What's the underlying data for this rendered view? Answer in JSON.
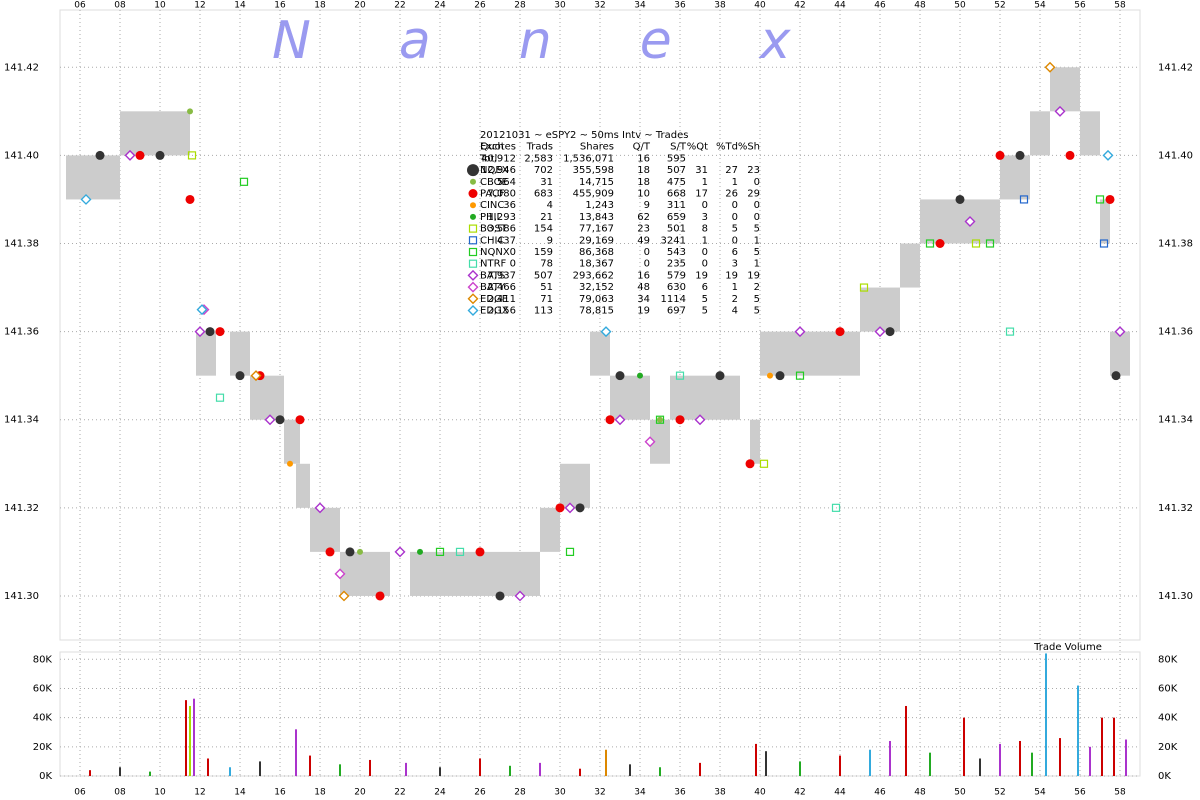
{
  "chart_data": [
    {
      "type": "scatter",
      "title": "Nanex",
      "subtitle": "20121031 ~ eSPY2 ~ 50ms Intv ~ Trades",
      "xlim": [
        5,
        59
      ],
      "xticks": [
        {
          "value": 6,
          "label": "06"
        },
        {
          "value": 8,
          "label": "08"
        },
        10,
        12,
        14,
        16,
        18,
        20,
        22,
        24,
        26,
        28,
        30,
        32,
        34,
        36,
        38,
        40,
        42,
        44,
        46,
        48,
        50,
        52,
        54,
        56,
        58
      ],
      "ylim": [
        141.29,
        141.433
      ],
      "yticks": [
        {
          "value": 141.3,
          "label": "141.30"
        },
        141.32,
        141.34,
        141.36,
        141.38,
        {
          "value": 141.4,
          "label": "141.40"
        },
        141.42
      ],
      "grid": true,
      "columns": [
        "Exch",
        "Quotes",
        "Trads",
        "Shares",
        "Q/T",
        "S/T",
        "%Qt",
        "%Td",
        "%Sh"
      ],
      "total": [
        "Totl",
        "40,912",
        "2,583",
        "1,536,071",
        "16",
        "595"
      ],
      "ranges": {
        "color": "#cccccc",
        "x": [
          5.3,
          8,
          11.8,
          13.5,
          14.5,
          16.2,
          16.8,
          17.5,
          19,
          22.5,
          29,
          30,
          31.5,
          32.5,
          34.5,
          35.5,
          39.5,
          40,
          43,
          45,
          47,
          48,
          49,
          52,
          53.5,
          54.5,
          56,
          57,
          57.5
        ],
        "x_end": [
          8,
          11.5,
          12.8,
          14.5,
          16.2,
          17,
          17.5,
          19,
          21.5,
          29,
          30,
          31.5,
          32.5,
          34.5,
          35.5,
          39,
          40,
          43,
          45,
          47,
          48,
          49,
          52,
          53.5,
          54.5,
          56,
          57,
          57.5,
          58.5
        ],
        "low": [
          141.39,
          141.4,
          141.35,
          141.35,
          141.34,
          141.33,
          141.32,
          141.31,
          141.3,
          141.3,
          141.31,
          141.32,
          141.35,
          141.34,
          141.33,
          141.34,
          141.33,
          141.35,
          141.35,
          141.36,
          141.37,
          141.38,
          141.38,
          141.39,
          141.4,
          141.41,
          141.4,
          141.38,
          141.35
        ],
        "high": [
          141.4,
          141.41,
          141.36,
          141.36,
          141.35,
          141.34,
          141.33,
          141.32,
          141.31,
          141.31,
          141.32,
          141.33,
          141.36,
          141.35,
          141.34,
          141.35,
          141.34,
          141.36,
          141.36,
          141.37,
          141.38,
          141.39,
          141.39,
          141.4,
          141.41,
          141.42,
          141.41,
          141.39,
          141.36
        ]
      },
      "series": [
        {
          "name": "NQEX",
          "color": "#333333",
          "marker": "circle",
          "cells": [
            "12,946",
            "702",
            "355,598",
            "18",
            "507",
            "31",
            "27",
            "23"
          ],
          "x": [
            7,
            10,
            12.5,
            14,
            16,
            19.5,
            27,
            31,
            33,
            38,
            41,
            46.5,
            50,
            53,
            57.8
          ],
          "values": [
            141.4,
            141.4,
            141.36,
            141.35,
            141.34,
            141.31,
            141.3,
            141.32,
            141.35,
            141.35,
            141.35,
            141.36,
            141.39,
            141.4,
            141.35
          ]
        },
        {
          "name": "CBOE",
          "color": "#88bb44",
          "marker": "dot",
          "cells": [
            "564",
            "31",
            "14,715",
            "18",
            "475",
            "1",
            "1",
            "0"
          ],
          "x": [
            11.5,
            20,
            35
          ],
          "values": [
            141.41,
            141.31,
            141.34
          ]
        },
        {
          "name": "PACF",
          "color": "#ee0000",
          "marker": "circle",
          "cells": [
            "7,080",
            "683",
            "455,909",
            "10",
            "668",
            "17",
            "26",
            "29"
          ],
          "x": [
            9,
            11.5,
            13,
            15,
            17,
            18.5,
            21,
            26,
            30,
            32.5,
            36,
            39.5,
            44,
            49,
            52,
            55.5,
            57.5
          ],
          "values": [
            141.4,
            141.39,
            141.36,
            141.35,
            141.34,
            141.31,
            141.3,
            141.31,
            141.32,
            141.34,
            141.34,
            141.33,
            141.36,
            141.38,
            141.4,
            141.4,
            141.39
          ]
        },
        {
          "name": "CINC",
          "color": "#ff9900",
          "marker": "dot",
          "cells": [
            "36",
            "4",
            "1,243",
            "9",
            "311",
            "0",
            "0",
            "0"
          ],
          "x": [
            16.5,
            40.5
          ],
          "values": [
            141.33,
            141.35
          ]
        },
        {
          "name": "PHIL",
          "color": "#22aa22",
          "marker": "dot",
          "cells": [
            "1,293",
            "21",
            "13,843",
            "62",
            "659",
            "3",
            "0",
            "0"
          ],
          "x": [
            23,
            34
          ],
          "values": [
            141.31,
            141.35
          ]
        },
        {
          "name": "BOST",
          "color": "#aadd00",
          "marker": "square",
          "cells": [
            "3,586",
            "154",
            "77,167",
            "23",
            "501",
            "8",
            "5",
            "5"
          ],
          "x": [
            11.6,
            40.2,
            45.2,
            50.8
          ],
          "values": [
            141.4,
            141.33,
            141.37,
            141.38
          ]
        },
        {
          "name": "CHIC",
          "color": "#2266cc",
          "marker": "square",
          "cells": [
            "437",
            "9",
            "29,169",
            "49",
            "3241",
            "1",
            "0",
            "1"
          ],
          "x": [
            53.2,
            57.2
          ],
          "values": [
            141.39,
            141.38
          ]
        },
        {
          "name": "NQNX",
          "color": "#22cc22",
          "marker": "square",
          "cells": [
            "0",
            "159",
            "86,368",
            "0",
            "543",
            "0",
            "6",
            "5"
          ],
          "x": [
            14.2,
            24,
            30.5,
            35,
            42,
            48.5,
            51.5,
            57
          ],
          "values": [
            141.394,
            141.31,
            141.31,
            141.34,
            141.35,
            141.38,
            141.38,
            141.39
          ]
        },
        {
          "name": "NTRF",
          "color": "#44ddaa",
          "marker": "square",
          "cells": [
            "0",
            "78",
            "18,367",
            "0",
            "235",
            "0",
            "3",
            "1"
          ],
          "x": [
            13,
            25,
            36,
            43.8,
            52.5
          ],
          "values": [
            141.345,
            141.31,
            141.35,
            141.32,
            141.36
          ]
        },
        {
          "name": "BATS",
          "color": "#aa33cc",
          "marker": "diamond",
          "cells": [
            "7,937",
            "507",
            "293,662",
            "16",
            "579",
            "19",
            "19",
            "19"
          ],
          "x": [
            8.5,
            12,
            15.5,
            18,
            22,
            28,
            30.5,
            33,
            37,
            42,
            46,
            50.5,
            55,
            58
          ],
          "values": [
            141.4,
            141.36,
            141.34,
            141.32,
            141.31,
            141.3,
            141.32,
            141.34,
            141.34,
            141.36,
            141.36,
            141.385,
            141.41,
            141.36
          ]
        },
        {
          "name": "BATY",
          "color": "#cc44cc",
          "marker": "diamond",
          "cells": [
            "2,466",
            "51",
            "32,152",
            "48",
            "630",
            "6",
            "1",
            "2"
          ],
          "x": [
            12.2,
            19,
            34.5
          ],
          "values": [
            141.365,
            141.305,
            141.335
          ]
        },
        {
          "name": "EDGE",
          "color": "#dd8800",
          "marker": "diamond",
          "cells": [
            "2,411",
            "71",
            "79,063",
            "34",
            "1114",
            "5",
            "2",
            "5"
          ],
          "x": [
            14.8,
            19.2,
            54.5
          ],
          "values": [
            141.35,
            141.3,
            141.42
          ]
        },
        {
          "name": "EDGX",
          "color": "#33aadd",
          "marker": "diamond",
          "cells": [
            "2,156",
            "113",
            "78,815",
            "19",
            "697",
            "5",
            "4",
            "5"
          ],
          "x": [
            6.3,
            12.1,
            32.3,
            57.4
          ],
          "values": [
            141.39,
            141.365,
            141.36,
            141.4
          ]
        }
      ]
    },
    {
      "type": "bar",
      "title": "Trade Volume",
      "xlim": [
        5,
        59
      ],
      "ylim": [
        0,
        85000
      ],
      "yticks": [
        {
          "value": 0,
          "label": "0K"
        },
        {
          "value": 20000,
          "label": "20K"
        },
        {
          "value": 40000,
          "label": "40K"
        },
        {
          "value": 60000,
          "label": "60K"
        },
        {
          "value": 80000,
          "label": "80K"
        }
      ],
      "x": [
        6.5,
        8,
        9.5,
        11.3,
        11.5,
        11.7,
        12.4,
        13.5,
        15,
        16.8,
        17.5,
        19,
        20.5,
        22.3,
        24,
        26,
        27.5,
        29,
        31,
        32.3,
        33.5,
        35,
        37,
        39.8,
        40.3,
        42,
        44,
        45.5,
        46.5,
        47.3,
        48.5,
        50.2,
        51,
        52,
        53,
        53.6,
        54.3,
        55,
        55.9,
        56.5,
        57.1,
        57.7,
        58.3
      ],
      "values": [
        4000,
        6000,
        3000,
        52000,
        48000,
        53000,
        12000,
        6000,
        10000,
        32000,
        14000,
        8000,
        11000,
        9000,
        6000,
        12000,
        7000,
        9000,
        5000,
        18000,
        8000,
        6000,
        9000,
        22000,
        17000,
        10000,
        14000,
        18000,
        24000,
        48000,
        16000,
        40000,
        12000,
        22000,
        24000,
        16000,
        84000,
        26000,
        62000,
        20000,
        40000,
        40000,
        25000
      ],
      "colors": [
        "#cc0000",
        "#333333",
        "#22aa22",
        "#cc0000",
        "#aadd00",
        "#aa33cc",
        "#cc0000",
        "#33aadd",
        "#333333",
        "#aa33cc",
        "#cc0000",
        "#22aa22",
        "#cc0000",
        "#aa33cc",
        "#333333",
        "#cc0000",
        "#22aa22",
        "#aa33cc",
        "#cc0000",
        "#dd8800",
        "#333333",
        "#22aa22",
        "#cc0000",
        "#cc0000",
        "#333333",
        "#22aa22",
        "#cc0000",
        "#33aadd",
        "#aa33cc",
        "#cc0000",
        "#22aa22",
        "#cc0000",
        "#333333",
        "#aa33cc",
        "#cc0000",
        "#22aa22",
        "#33aadd",
        "#cc0000",
        "#33aadd",
        "#aa33cc",
        "#cc0000",
        "#cc0000",
        "#aa33cc"
      ]
    }
  ]
}
